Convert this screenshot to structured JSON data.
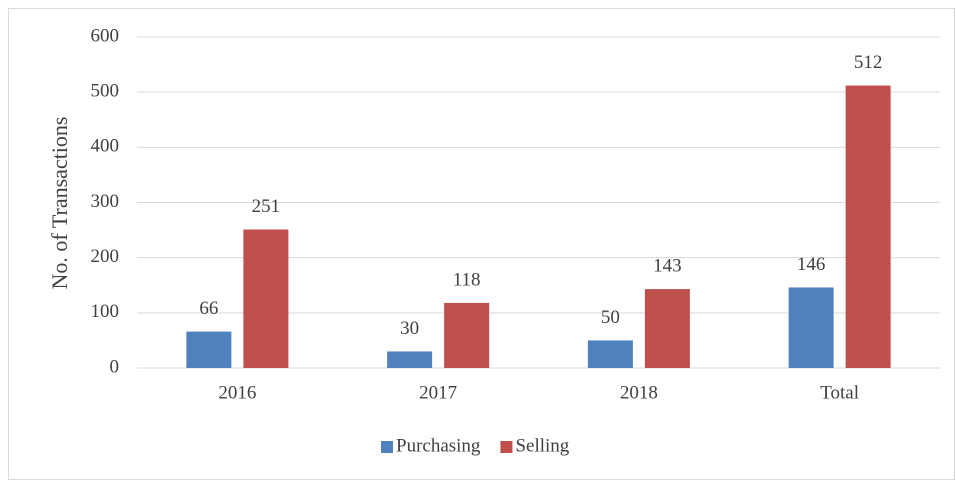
{
  "chart_data": {
    "type": "bar",
    "ylabel": "No. of Transactions",
    "categories": [
      "2016",
      "2017",
      "2018",
      "Total"
    ],
    "series": [
      {
        "name": "Purchasing",
        "color": "#4f81bd",
        "values": [
          66,
          30,
          50,
          146
        ]
      },
      {
        "name": "Selling",
        "color": "#c0504d",
        "values": [
          251,
          118,
          143,
          512
        ]
      }
    ],
    "ylim": [
      0,
      600
    ],
    "yticks": [
      0,
      100,
      200,
      300,
      400,
      500,
      600
    ],
    "grid": true,
    "legend": "bottom"
  }
}
